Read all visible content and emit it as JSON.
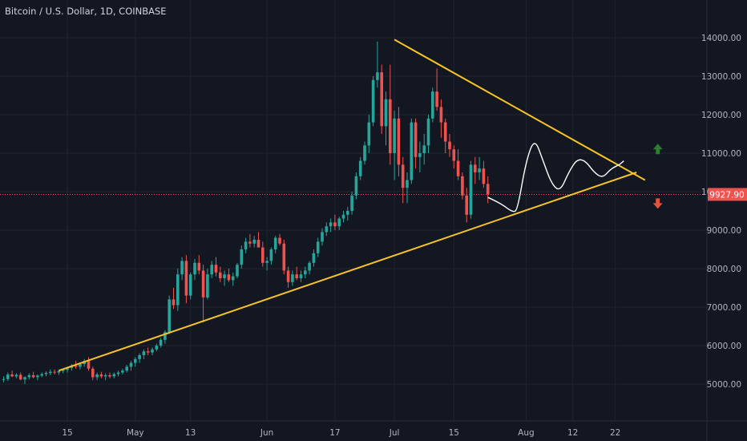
{
  "header": {
    "symbol": "Bitcoin / U.S. Dollar",
    "interval": "1D",
    "exchange": "COINBASE"
  },
  "colors": {
    "background": "#131722",
    "grid": "#1f2430",
    "up_candle": "#26a69a",
    "down_candle": "#ef5350",
    "trendline": "#f7c325",
    "projection": "#ffffff",
    "price_line": "#ef5350",
    "arrow_up": "#2e7d32",
    "arrow_down": "#e0533d"
  },
  "chart_data": {
    "type": "candlestick",
    "price_label": "9927.90",
    "last_price": 9927.9,
    "y_ticks": [
      "14000.00",
      "13000.00",
      "12000.00",
      "11000.00",
      "10000.00",
      "9000.00",
      "8000.00",
      "7000.00",
      "6000.00",
      "5000.00"
    ],
    "y_tick_values": [
      14000,
      13000,
      12000,
      11000,
      10000,
      9000,
      8000,
      7000,
      6000,
      5000
    ],
    "x_ticks": [
      {
        "label": "15",
        "day": 15
      },
      {
        "label": "May",
        "day": 31
      },
      {
        "label": "13",
        "day": 44
      },
      {
        "label": "Jun",
        "day": 62
      },
      {
        "label": "17",
        "day": 78
      },
      {
        "label": "Jul",
        "day": 92
      },
      {
        "label": "15",
        "day": 106
      },
      {
        "label": "Aug",
        "day": 123
      },
      {
        "label": "12",
        "day": 134
      },
      {
        "label": "22",
        "day": 144
      }
    ],
    "start_date": "2019-04-01",
    "ylim": [
      4500,
      15000
    ],
    "candles": [
      [
        5120,
        5200,
        5050,
        5130
      ],
      [
        5130,
        5300,
        5080,
        5250
      ],
      [
        5250,
        5350,
        5180,
        5200
      ],
      [
        5200,
        5280,
        5150,
        5240
      ],
      [
        5240,
        5300,
        5100,
        5120
      ],
      [
        5120,
        5200,
        5000,
        5180
      ],
      [
        5180,
        5280,
        5120,
        5230
      ],
      [
        5230,
        5320,
        5150,
        5180
      ],
      [
        5180,
        5250,
        5100,
        5220
      ],
      [
        5220,
        5300,
        5180,
        5260
      ],
      [
        5260,
        5330,
        5200,
        5290
      ],
      [
        5290,
        5380,
        5230,
        5320
      ],
      [
        5320,
        5380,
        5250,
        5300
      ],
      [
        5300,
        5360,
        5240,
        5340
      ],
      [
        5340,
        5400,
        5280,
        5370
      ],
      [
        5370,
        5450,
        5300,
        5420
      ],
      [
        5420,
        5520,
        5350,
        5480
      ],
      [
        5480,
        5600,
        5400,
        5450
      ],
      [
        5450,
        5560,
        5380,
        5520
      ],
      [
        5520,
        5650,
        5450,
        5600
      ],
      [
        5600,
        5700,
        5350,
        5400
      ],
      [
        5400,
        5450,
        5100,
        5180
      ],
      [
        5180,
        5300,
        5100,
        5250
      ],
      [
        5250,
        5320,
        5150,
        5200
      ],
      [
        5200,
        5280,
        5100,
        5230
      ],
      [
        5230,
        5300,
        5150,
        5200
      ],
      [
        5200,
        5300,
        5150,
        5260
      ],
      [
        5260,
        5350,
        5200,
        5300
      ],
      [
        5300,
        5400,
        5250,
        5350
      ],
      [
        5350,
        5500,
        5300,
        5450
      ],
      [
        5450,
        5600,
        5350,
        5550
      ],
      [
        5550,
        5700,
        5450,
        5650
      ],
      [
        5650,
        5800,
        5550,
        5750
      ],
      [
        5750,
        5900,
        5650,
        5850
      ],
      [
        5850,
        5950,
        5750,
        5820
      ],
      [
        5820,
        5950,
        5750,
        5900
      ],
      [
        5900,
        6050,
        5850,
        6000
      ],
      [
        6000,
        6200,
        5950,
        6150
      ],
      [
        6150,
        6400,
        6050,
        6350
      ],
      [
        6350,
        7300,
        6300,
        7200
      ],
      [
        7200,
        7500,
        6950,
        7050
      ],
      [
        7050,
        8000,
        6900,
        7850
      ],
      [
        7850,
        8300,
        7700,
        8200
      ],
      [
        8200,
        8350,
        7100,
        7300
      ],
      [
        7300,
        7900,
        7200,
        7850
      ],
      [
        7850,
        8250,
        7700,
        8150
      ],
      [
        8150,
        8350,
        7850,
        7950
      ],
      [
        7950,
        8100,
        6600,
        7250
      ],
      [
        7250,
        8000,
        7200,
        7850
      ],
      [
        7850,
        8200,
        7750,
        8100
      ],
      [
        8100,
        8300,
        7800,
        7900
      ],
      [
        7900,
        8050,
        7650,
        7750
      ],
      [
        7750,
        7950,
        7550,
        7850
      ],
      [
        7850,
        8000,
        7650,
        7700
      ],
      [
        7700,
        7900,
        7550,
        7800
      ],
      [
        7800,
        8150,
        7750,
        8100
      ],
      [
        8100,
        8600,
        8000,
        8500
      ],
      [
        8500,
        8800,
        8400,
        8700
      ],
      [
        8700,
        8900,
        8550,
        8650
      ],
      [
        8650,
        8850,
        8550,
        8750
      ],
      [
        8750,
        8950,
        8600,
        8550
      ],
      [
        8550,
        8700,
        8050,
        8150
      ],
      [
        8150,
        8300,
        7950,
        8200
      ],
      [
        8200,
        8550,
        8100,
        8500
      ],
      [
        8500,
        8850,
        8400,
        8800
      ],
      [
        8800,
        8900,
        8600,
        8650
      ],
      [
        8650,
        8750,
        7850,
        7950
      ],
      [
        7950,
        8050,
        7500,
        7650
      ],
      [
        7650,
        7950,
        7550,
        7850
      ],
      [
        7850,
        8050,
        7700,
        7750
      ],
      [
        7750,
        7950,
        7650,
        7850
      ],
      [
        7850,
        8050,
        7750,
        7950
      ],
      [
        7950,
        8200,
        7850,
        8150
      ],
      [
        8150,
        8500,
        8050,
        8400
      ],
      [
        8400,
        8800,
        8300,
        8700
      ],
      [
        8700,
        9050,
        8600,
        8950
      ],
      [
        8950,
        9200,
        8850,
        9100
      ],
      [
        9100,
        9300,
        8950,
        9200
      ],
      [
        9200,
        9400,
        9000,
        9100
      ],
      [
        9100,
        9350,
        9000,
        9300
      ],
      [
        9300,
        9500,
        9200,
        9400
      ],
      [
        9400,
        9600,
        9250,
        9500
      ],
      [
        9500,
        10000,
        9400,
        9900
      ],
      [
        9900,
        10500,
        9800,
        10400
      ],
      [
        10400,
        10900,
        10300,
        10800
      ],
      [
        10800,
        11300,
        10700,
        11200
      ],
      [
        11200,
        12000,
        11000,
        11800
      ],
      [
        11800,
        13000,
        11700,
        12900
      ],
      [
        12900,
        13900,
        12700,
        13100
      ],
      [
        13100,
        13300,
        11500,
        11700
      ],
      [
        11700,
        12600,
        11200,
        12400
      ],
      [
        12400,
        13300,
        10700,
        11000
      ],
      [
        11000,
        12100,
        10300,
        11900
      ],
      [
        11900,
        12200,
        10400,
        10700
      ],
      [
        10700,
        10900,
        9700,
        10100
      ],
      [
        10100,
        10500,
        9700,
        10300
      ],
      [
        10300,
        11900,
        10200,
        11800
      ],
      [
        11800,
        11900,
        10600,
        10900
      ],
      [
        10900,
        11300,
        10500,
        11000
      ],
      [
        11000,
        11500,
        10700,
        11200
      ],
      [
        11200,
        12000,
        11000,
        11900
      ],
      [
        11900,
        12700,
        11800,
        12600
      ],
      [
        12600,
        13200,
        12100,
        12200
      ],
      [
        12200,
        12400,
        11400,
        11800
      ],
      [
        11800,
        11900,
        11000,
        11300
      ],
      [
        11300,
        11500,
        10900,
        11100
      ],
      [
        11100,
        11200,
        10600,
        10800
      ],
      [
        10800,
        11100,
        10300,
        10400
      ],
      [
        10400,
        10500,
        9800,
        9900
      ],
      [
        9900,
        10100,
        9200,
        9400
      ],
      [
        9400,
        10800,
        9300,
        10700
      ],
      [
        10700,
        10900,
        10200,
        10500
      ],
      [
        10500,
        10900,
        10300,
        10600
      ],
      [
        10600,
        10800,
        10100,
        10200
      ],
      [
        10200,
        10400,
        9700,
        9928
      ]
    ],
    "trendlines": [
      {
        "name": "resistance",
        "points": [
          [
            92,
            13950
          ],
          [
            151,
            10300
          ]
        ]
      },
      {
        "name": "support",
        "points": [
          [
            13,
            5350
          ],
          [
            149,
            10500
          ]
        ]
      }
    ],
    "projection_path": [
      [
        114,
        9850
      ],
      [
        117,
        9700
      ],
      [
        120,
        9450
      ],
      [
        121,
        9550
      ],
      [
        123,
        10800
      ],
      [
        125,
        11400
      ],
      [
        127,
        10800
      ],
      [
        129,
        10200
      ],
      [
        131,
        10000
      ],
      [
        133,
        10500
      ],
      [
        135,
        10850
      ],
      [
        137,
        10800
      ],
      [
        139,
        10500
      ],
      [
        141,
        10350
      ],
      [
        143,
        10600
      ],
      [
        145,
        10700
      ],
      [
        146,
        10800
      ]
    ],
    "arrows": [
      {
        "direction": "up",
        "day": 154,
        "price": 11100
      },
      {
        "direction": "down",
        "day": 154,
        "price": 9700
      }
    ]
  }
}
